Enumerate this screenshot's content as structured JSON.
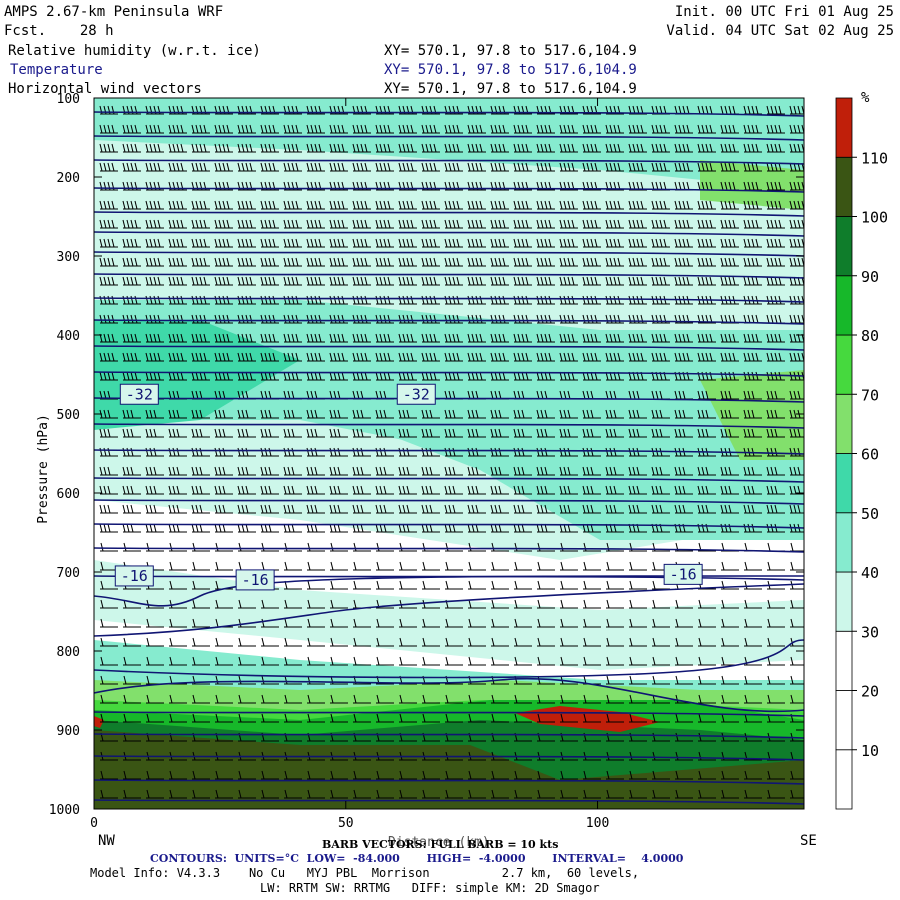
{
  "header": {
    "title": "AMPS 2.67-km Peninsula WRF",
    "fcst": "Fcst.    28 h",
    "init": "Init. 00 UTC Fri 01 Aug 25",
    "valid": "Valid. 04 UTC Sat 02 Aug 25",
    "fields": [
      {
        "label": "Relative humidity (w.r.t. ice)",
        "xy": "XY= 570.1, 97.8 to 517.6,104.9"
      },
      {
        "label": "Temperature",
        "xy": "XY= 570.1, 97.8 to 517.6,104.9"
      },
      {
        "label": "Horizontal wind vectors",
        "xy": "XY= 570.1, 97.8 to 517.6,104.9"
      }
    ]
  },
  "chart_data": {
    "type": "heatmap",
    "title": "",
    "xlabel": "Distance (km)",
    "ylabel": "Pressure (hPa)",
    "xlim": [
      0,
      141
    ],
    "ylim": [
      1000,
      100
    ],
    "x_ticks": [
      "0",
      "50",
      "100"
    ],
    "y_ticks": [
      "100",
      "200",
      "300",
      "400",
      "500",
      "600",
      "700",
      "800",
      "900",
      "1000"
    ],
    "x_endpoint_labels": {
      "left": "NW",
      "right": "SE"
    },
    "colorbar": {
      "unit": "%",
      "levels": [
        10,
        20,
        30,
        40,
        50,
        60,
        70,
        80,
        90,
        100,
        110
      ],
      "tick_labels": [
        "10",
        "20",
        "30",
        "40",
        "50",
        "60",
        "70",
        "80",
        "90",
        "100",
        "110"
      ],
      "colors": [
        "#ffffff",
        "#ffffff",
        "#ffffff",
        "#cdf7ea",
        "#86ebcf",
        "#3fd9a9",
        "#82e06c",
        "#46d93e",
        "#17b82a",
        "#0f7d2b",
        "#3a5514",
        "#c01f0a"
      ]
    },
    "temperature_labels": [
      {
        "text": "-32",
        "x": 9,
        "p": 475
      },
      {
        "text": "-32",
        "x": 64,
        "p": 475
      },
      {
        "text": "-16",
        "x": 8,
        "p": 705
      },
      {
        "text": "-16",
        "x": 32,
        "p": 710
      },
      {
        "text": "-16",
        "x": 117,
        "p": 703
      }
    ],
    "isotherm_interval": 4
  },
  "footer": {
    "barb_note": "BARB VECTORS: FULL BARB = 10 kts",
    "contours": "CONTOURS:  UNITS=°C  LOW=  -84.000       HIGH=  -4.0000       INTERVAL=    4.0000",
    "model_info": "Model Info: V4.3.3    No Cu   MYJ PBL  Morrison          2.7 km,  60 levels,",
    "physics": "LW: RRTM SW: RRTMG   DIFF: simple KM: 2D Smagor"
  },
  "colors": {
    "isotherm": "#101573",
    "barb": "#000000"
  }
}
